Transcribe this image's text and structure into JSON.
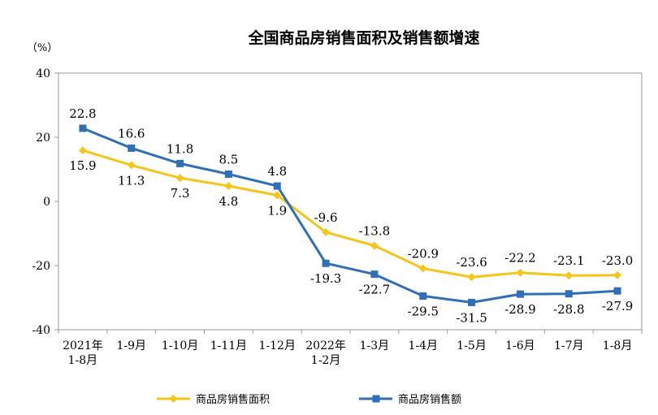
{
  "chart_data": {
    "type": "line",
    "title": "全国商品房销售面积及销售额增速",
    "unit_label": "（%）",
    "ylim": [
      -40,
      40
    ],
    "yticks": [
      40,
      20,
      0,
      -20,
      -40
    ],
    "categories": [
      [
        "2021年",
        "1-8月"
      ],
      [
        "1-9月"
      ],
      [
        "1-10月"
      ],
      [
        "1-11月"
      ],
      [
        "1-12月"
      ],
      [
        "2022年",
        "1-2月"
      ],
      [
        "1-3月"
      ],
      [
        "1-4月"
      ],
      [
        "1-5月"
      ],
      [
        "1-6月"
      ],
      [
        "1-7月"
      ],
      [
        "1-8月"
      ]
    ],
    "series": [
      {
        "name": "商品房销售面积",
        "color": "#f5c518",
        "marker": "diamond",
        "values": [
          15.9,
          11.3,
          7.3,
          4.8,
          1.9,
          -9.6,
          -13.8,
          -20.9,
          -23.6,
          -22.2,
          -23.1,
          -23.0
        ],
        "labels": [
          "15.9",
          "11.3",
          "7.3",
          "4.8",
          "1.9",
          "-9.6",
          "-13.8",
          "-20.9",
          "-23.6",
          "-22.2",
          "-23.1",
          "-23.0"
        ]
      },
      {
        "name": "商品房销售额",
        "color": "#2e6fb7",
        "marker": "square",
        "values": [
          22.8,
          16.6,
          11.8,
          8.5,
          4.8,
          -19.3,
          -22.7,
          -29.5,
          -31.5,
          -28.9,
          -28.8,
          -27.9
        ],
        "labels": [
          "22.8",
          "16.6",
          "11.8",
          "8.5",
          "4.8",
          "-19.3",
          "-22.7",
          "-29.5",
          "-31.5",
          "-28.9",
          "-28.8",
          "-27.9"
        ]
      }
    ]
  }
}
